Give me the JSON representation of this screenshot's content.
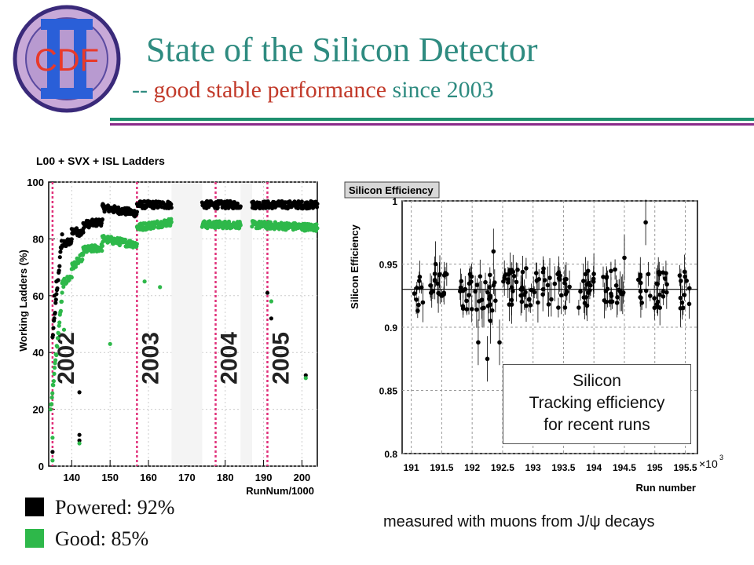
{
  "header": {
    "logo_text": "CDF",
    "title": "State of the Silicon Detector",
    "subtitle_dash": "--",
    "subtitle_highlight": "good stable performance",
    "subtitle_tail": "since 2003"
  },
  "colors": {
    "title": "#2e8b80",
    "highlight": "#c23a2a",
    "powered": "#000000",
    "good": "#2eb84a",
    "year_line": "#e0307a"
  },
  "chart_data": [
    {
      "type": "scatter",
      "title": "L00 + SVX + ISL Ladders",
      "xlabel": "RunNum/1000",
      "ylabel": "Working Ladders  (%)",
      "xlim": [
        134,
        204
      ],
      "ylim": [
        0,
        100
      ],
      "xticks": [
        140,
        150,
        160,
        170,
        180,
        190,
        200
      ],
      "yticks": [
        0,
        20,
        40,
        60,
        80,
        100
      ],
      "grid": true,
      "year_markers": [
        {
          "x": 135,
          "label": "2002"
        },
        {
          "x": 157,
          "label": "2003"
        },
        {
          "x": 177.5,
          "label": "2004"
        },
        {
          "x": 191,
          "label": "2005"
        }
      ],
      "gaps": [
        [
          166,
          174
        ],
        [
          184,
          187
        ]
      ],
      "series": [
        {
          "name": "Powered",
          "color": "#000000",
          "segments": [
            {
              "x": [
                135,
                137.5
              ],
              "y": [
                45,
                81
              ]
            },
            {
              "x": [
                137.5,
                140
              ],
              "y": [
                78,
                79
              ]
            },
            {
              "x": [
                140,
                143
              ],
              "y": [
                83,
                82
              ]
            },
            {
              "x": [
                143,
                148
              ],
              "y": [
                85,
                86
              ]
            },
            {
              "x": [
                148,
                157
              ],
              "y": [
                91,
                89
              ]
            },
            {
              "x": [
                157,
                166
              ],
              "y": [
                92,
                92
              ]
            },
            {
              "x": [
                174,
                184
              ],
              "y": [
                92,
                92
              ]
            },
            {
              "x": [
                187,
                204
              ],
              "y": [
                92,
                92
              ]
            }
          ],
          "outliers": [
            [
              135,
              5
            ],
            [
              135.5,
              60
            ],
            [
              136,
              65
            ],
            [
              142,
              26
            ],
            [
              142,
              11
            ],
            [
              142,
              9
            ],
            [
              191,
              61
            ],
            [
              192,
              52
            ],
            [
              201,
              32
            ]
          ]
        },
        {
          "name": "Good",
          "color": "#2eb84a",
          "segments": [
            {
              "x": [
                134.5,
                137.5
              ],
              "y": [
                20,
                60
              ]
            },
            {
              "x": [
                137.5,
                140
              ],
              "y": [
                64,
                67
              ]
            },
            {
              "x": [
                140,
                143
              ],
              "y": [
                70,
                74
              ]
            },
            {
              "x": [
                143,
                148
              ],
              "y": [
                76,
                77
              ]
            },
            {
              "x": [
                148,
                157
              ],
              "y": [
                80,
                78
              ]
            },
            {
              "x": [
                157,
                166
              ],
              "y": [
                84,
                86
              ]
            },
            {
              "x": [
                174,
                184
              ],
              "y": [
                85,
                85
              ]
            },
            {
              "x": [
                187,
                204
              ],
              "y": [
                85,
                84
              ]
            }
          ],
          "outliers": [
            [
              135,
              2
            ],
            [
              135,
              10
            ],
            [
              138,
              48
            ],
            [
              142,
              8
            ],
            [
              150,
              43
            ],
            [
              159,
              65
            ],
            [
              163,
              63
            ],
            [
              192,
              58
            ],
            [
              201,
              31
            ]
          ]
        }
      ]
    },
    {
      "type": "scatter",
      "title": "Silicon Efficiency",
      "xlabel": "Run number",
      "ylabel": "Silicon Efficiency",
      "x_multiplier": "x10^3",
      "xlim": [
        190.85,
        195.7
      ],
      "ylim": [
        0.8,
        1.0
      ],
      "xticks": [
        191,
        191.5,
        192,
        192.5,
        193,
        193.5,
        194,
        194.5,
        195,
        195.5
      ],
      "ytick_labels": [
        "0.8",
        "0.85",
        "0.9",
        "0.95",
        "1"
      ],
      "yticks": [
        0.8,
        0.85,
        0.9,
        0.95,
        1.0
      ],
      "reference_line": 0.93,
      "grid": true,
      "clusters": [
        {
          "x0": 191.05,
          "x1": 191.2,
          "y": 0.926
        },
        {
          "x0": 191.3,
          "x1": 191.6,
          "y": 0.93
        },
        {
          "x0": 191.8,
          "x1": 192.4,
          "y": 0.928
        },
        {
          "x0": 192.5,
          "x1": 193.3,
          "y": 0.932
        },
        {
          "x0": 193.35,
          "x1": 193.6,
          "y": 0.93
        },
        {
          "x0": 193.75,
          "x1": 194.05,
          "y": 0.93
        },
        {
          "x0": 194.15,
          "x1": 194.5,
          "y": 0.932
        },
        {
          "x0": 194.7,
          "x1": 195.2,
          "y": 0.93
        },
        {
          "x0": 195.4,
          "x1": 195.6,
          "y": 0.93
        }
      ],
      "outliers": [
        [
          192.1,
          0.888
        ],
        [
          192.25,
          0.875
        ],
        [
          192.35,
          0.96
        ],
        [
          192.45,
          0.888
        ],
        [
          192.3,
          0.905
        ],
        [
          194.85,
          0.983
        ],
        [
          194.5,
          0.955
        ],
        [
          191.4,
          0.95
        ]
      ]
    }
  ],
  "note": {
    "line1": "Silicon",
    "line2": "Tracking efficiency",
    "line3": "for recent runs"
  },
  "legend": {
    "powered": "Powered: 92%",
    "good": "Good:  85%"
  },
  "footnote": "measured with muons from J/ψ decays"
}
